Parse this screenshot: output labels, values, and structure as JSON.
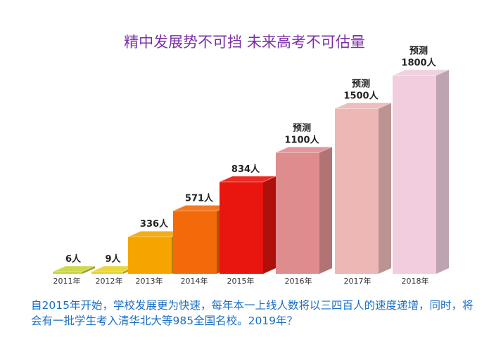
{
  "chart_data": {
    "type": "bar",
    "title": "精中发展势不可挡 未来高考不可估量",
    "categories": [
      "2011年",
      "2012年",
      "2013年",
      "2014年",
      "2015年",
      "2016年",
      "2017年",
      "2018年"
    ],
    "values": [
      6,
      9,
      336,
      571,
      834,
      1100,
      1500,
      1800
    ],
    "data_labels": [
      "6人",
      "9人",
      "336人",
      "571人",
      "834人",
      "1100人",
      "1500人",
      "1800人"
    ],
    "forecast_label": "预测",
    "forecast": [
      false,
      false,
      false,
      false,
      false,
      true,
      true,
      true
    ],
    "colors": [
      "#c8d43a",
      "#e8d22a",
      "#f6a400",
      "#f26a0a",
      "#e8160e",
      "#d9787a",
      "#e9aaa8",
      "#eec4d8"
    ],
    "grid": false,
    "legend": "none"
  },
  "note": "自2015年开始，学校发展更为快速，每年本一上线人数将以三四百人的速度递增，同时，将会有一批学生考入清华北大等985全国名校。2019年？"
}
